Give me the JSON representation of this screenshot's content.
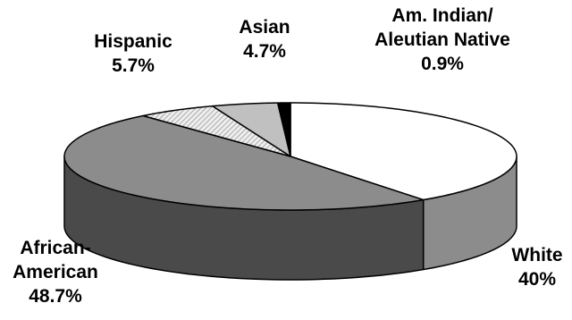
{
  "chart_data": {
    "type": "pie",
    "style": "3d",
    "slices": [
      {
        "label_lines": [
          "White",
          "40%"
        ],
        "value": 40,
        "color": "#ffffff",
        "side_color": "#8c8c8c"
      },
      {
        "label_lines": [
          "African-",
          "American",
          "48.7%"
        ],
        "value": 48.7,
        "color": "#8c8c8c",
        "side_color": "#4a4a4a"
      },
      {
        "label_lines": [
          "Hispanic",
          "5.7%"
        ],
        "value": 5.7,
        "color": "#e6e6e6",
        "side_color": "#a0a0a0",
        "pattern": "hatched"
      },
      {
        "label_lines": [
          "Asian",
          "4.7%"
        ],
        "value": 4.7,
        "color": "#c0c0c0",
        "side_color": "#8a8a8a"
      },
      {
        "label_lines": [
          "Am. Indian/",
          "Aleutian Native",
          "0.9%"
        ],
        "value": 0.9,
        "color": "#000000",
        "side_color": "#000000"
      }
    ]
  }
}
